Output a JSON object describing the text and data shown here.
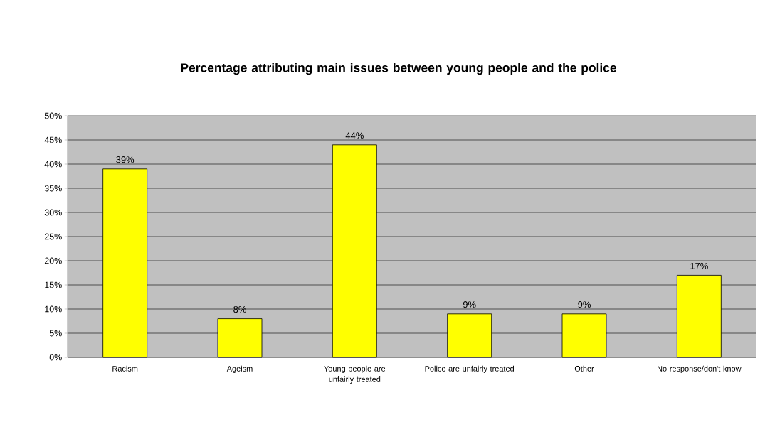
{
  "chart_data": {
    "type": "bar",
    "title": "Percentage attributing main issues between young people and the police",
    "categories": [
      "Racism",
      "Ageism",
      "Young people are unfairly treated",
      "Police are unfairly treated",
      "Other",
      "No response/don't know"
    ],
    "values": [
      39,
      8,
      44,
      9,
      9,
      17
    ],
    "value_labels": [
      "39%",
      "8%",
      "44%",
      "9%",
      "9%",
      "17%"
    ],
    "color": "#ffff00",
    "ylim": [
      0,
      50
    ],
    "yticks": [
      {
        "value": 0,
        "label": "0%"
      },
      {
        "value": 5,
        "label": "5%"
      },
      {
        "value": 10,
        "label": "10%"
      },
      {
        "value": 15,
        "label": "15%"
      },
      {
        "value": 20,
        "label": "20%"
      },
      {
        "value": 25,
        "label": "25%"
      },
      {
        "value": 30,
        "label": "30%"
      },
      {
        "value": 35,
        "label": "35%"
      },
      {
        "value": 40,
        "label": "40%"
      },
      {
        "value": 45,
        "label": "45%"
      },
      {
        "value": 50,
        "label": "50%"
      }
    ],
    "grid": "y"
  }
}
